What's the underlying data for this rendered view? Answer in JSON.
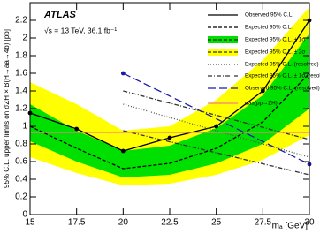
{
  "chart_data": {
    "type": "line",
    "title": "ATLAS",
    "subtitle": "√s = 13 TeV, 36.1 fb⁻¹",
    "x_label": "mₐ [GeV]",
    "y_label": "95% C.L. upper limits on σZH × B(H→aa→4b) [pb]",
    "xlim": [
      15,
      30
    ],
    "xticks": [
      15,
      17.5,
      20,
      22.5,
      25,
      27.5,
      30
    ],
    "ylim": [
      0,
      2.4
    ],
    "yticks": [
      0,
      0.2,
      0.4,
      0.6,
      0.8,
      1,
      1.2,
      1.4,
      1.6,
      1.8,
      2,
      2.2
    ],
    "legend": "upper right",
    "series": [
      {
        "name": "Observed 95% C.L.",
        "style": "solid-markers",
        "color": "#000000",
        "x": [
          15,
          17.5,
          20,
          22.5,
          25,
          27.5,
          30
        ],
        "values": [
          1.15,
          0.97,
          0.72,
          0.87,
          1.0,
          1.4,
          2.2
        ]
      },
      {
        "name": "Expected 95% C.L.",
        "style": "dashed",
        "color": "#000000",
        "x": [
          15,
          17.5,
          20,
          22.5,
          25,
          27.5,
          30
        ],
        "values": [
          1.0,
          0.75,
          0.52,
          0.58,
          0.75,
          1.05,
          1.6
        ]
      },
      {
        "name": "Expected 95% C.L. ± 1σ",
        "style": "band",
        "color": "#00e000",
        "x": [
          15,
          17.5,
          20,
          22.5,
          25,
          27.5,
          30
        ],
        "low": [
          0.83,
          0.6,
          0.42,
          0.45,
          0.58,
          0.8,
          1.2
        ],
        "high": [
          1.25,
          0.95,
          0.72,
          0.78,
          0.98,
          1.35,
          2.05
        ]
      },
      {
        "name": "Expected 95% C.L. ± 2σ",
        "style": "band",
        "color": "#ffff00",
        "x": [
          15,
          17.5,
          20,
          22.5,
          25,
          27.5,
          30
        ],
        "low": [
          0.65,
          0.47,
          0.33,
          0.35,
          0.45,
          0.62,
          0.9
        ],
        "high": [
          1.5,
          1.25,
          0.95,
          1.0,
          1.3,
          1.75,
          2.35
        ]
      },
      {
        "name": "Expected 95% C.L. (resolved)",
        "style": "dotted",
        "color": "#555555",
        "x": [
          20,
          30
        ],
        "values": [
          1.25,
          0.65
        ]
      },
      {
        "name": "Expected 95% C.L. ± 1σ (resolved)",
        "style": "dashdot",
        "color": "#333333",
        "x": [
          20,
          30
        ],
        "low": [
          0.95,
          0.45
        ],
        "high": [
          1.4,
          0.85
        ]
      },
      {
        "name": "Observed 95% C.L. (resolved)",
        "style": "longdash-markers",
        "color": "#1a1aa8",
        "x": [
          20,
          30
        ],
        "values": [
          1.6,
          0.57
        ]
      },
      {
        "name": "σaa(pp→ZH)",
        "style": "solid",
        "color": "#f08080",
        "x": [
          15,
          30
        ],
        "values": [
          0.93,
          0.93
        ]
      }
    ]
  }
}
